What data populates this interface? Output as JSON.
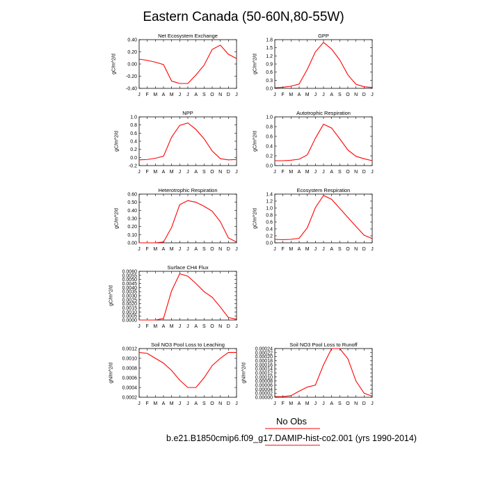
{
  "title": "Eastern Canada (50-60N,80-55W)",
  "footer": {
    "no_obs": "No Obs",
    "case": "b.e21.B1850cmip6.f09_g17.DAMIP-hist-co2.001 (yrs 1990-2014)"
  },
  "colors": {
    "line": "#ff0000",
    "axis": "#000000"
  },
  "chart_data": [
    {
      "type": "line",
      "title": "Net Ecosystem Exchange",
      "ylabel": "gC/m^2/d",
      "categories": [
        "J",
        "F",
        "M",
        "A",
        "M",
        "J",
        "J",
        "A",
        "S",
        "O",
        "N",
        "D",
        "J"
      ],
      "ylim": [
        -0.4,
        0.4
      ],
      "yticks": [
        -0.4,
        -0.2,
        0.0,
        0.2,
        0.4
      ],
      "ytick_labels": [
        "-0.40",
        "-0.20",
        "0.00",
        "0.20",
        "0.40"
      ],
      "values": [
        0.08,
        0.06,
        0.03,
        -0.01,
        -0.28,
        -0.32,
        -0.32,
        -0.18,
        -0.02,
        0.24,
        0.31,
        0.16,
        0.09
      ]
    },
    {
      "type": "line",
      "title": "GPP",
      "ylabel": "gC/m^2/d",
      "categories": [
        "J",
        "F",
        "M",
        "A",
        "M",
        "J",
        "J",
        "A",
        "S",
        "O",
        "N",
        "D",
        "J"
      ],
      "ylim": [
        0,
        1.8
      ],
      "yticks": [
        0,
        0.3,
        0.6,
        0.9,
        1.2,
        1.5,
        1.8
      ],
      "ytick_labels": [
        "0.0",
        "0.3",
        "0.6",
        "0.9",
        "1.2",
        "1.5",
        "1.8"
      ],
      "values": [
        0.02,
        0.04,
        0.08,
        0.16,
        0.7,
        1.35,
        1.7,
        1.45,
        1.05,
        0.5,
        0.15,
        0.06,
        0.03
      ]
    },
    {
      "type": "line",
      "title": "NPP",
      "ylabel": "gC/m^2/d",
      "categories": [
        "J",
        "F",
        "M",
        "A",
        "M",
        "J",
        "J",
        "A",
        "S",
        "O",
        "N",
        "D",
        "J"
      ],
      "ylim": [
        -0.2,
        1.0
      ],
      "yticks": [
        -0.2,
        0.0,
        0.2,
        0.4,
        0.6,
        0.8,
        1.0
      ],
      "ytick_labels": [
        "-0.2",
        "0.0",
        "0.2",
        "0.4",
        "0.6",
        "0.8",
        "1.0"
      ],
      "values": [
        -0.06,
        -0.05,
        -0.02,
        0.03,
        0.5,
        0.79,
        0.85,
        0.69,
        0.46,
        0.16,
        -0.03,
        -0.06,
        -0.05
      ]
    },
    {
      "type": "line",
      "title": "Autotrophic Respiration",
      "ylabel": "gC/m^2/d",
      "categories": [
        "J",
        "F",
        "M",
        "A",
        "M",
        "J",
        "J",
        "A",
        "S",
        "O",
        "N",
        "D",
        "J"
      ],
      "ylim": [
        0,
        1.0
      ],
      "yticks": [
        0,
        0.2,
        0.4,
        0.6,
        0.8,
        1.0
      ],
      "ytick_labels": [
        "0.0",
        "0.2",
        "0.4",
        "0.6",
        "0.8",
        "1.0"
      ],
      "values": [
        0.1,
        0.1,
        0.11,
        0.13,
        0.22,
        0.56,
        0.85,
        0.77,
        0.55,
        0.32,
        0.19,
        0.14,
        0.1
      ]
    },
    {
      "type": "line",
      "title": "Heterotrophic Respiration",
      "ylabel": "gC/m^2/d",
      "categories": [
        "J",
        "F",
        "M",
        "A",
        "M",
        "J",
        "J",
        "A",
        "S",
        "O",
        "N",
        "D",
        "J"
      ],
      "ylim": [
        0,
        0.6
      ],
      "yticks": [
        0,
        0.1,
        0.2,
        0.3,
        0.4,
        0.5,
        0.6
      ],
      "ytick_labels": [
        "0.00",
        "0.10",
        "0.20",
        "0.30",
        "0.40",
        "0.50",
        "0.60"
      ],
      "values": [
        0.0,
        0.0,
        0.0,
        0.01,
        0.19,
        0.47,
        0.52,
        0.5,
        0.45,
        0.39,
        0.26,
        0.06,
        0.01
      ]
    },
    {
      "type": "line",
      "title": "Ecosystem Respiration",
      "ylabel": "gC/m^2/d",
      "categories": [
        "J",
        "F",
        "M",
        "A",
        "M",
        "J",
        "J",
        "A",
        "S",
        "O",
        "N",
        "D",
        "J"
      ],
      "ylim": [
        0,
        1.4
      ],
      "yticks": [
        0,
        0.2,
        0.4,
        0.6,
        0.8,
        1.0,
        1.2,
        1.4
      ],
      "ytick_labels": [
        "0.0",
        "0.2",
        "0.4",
        "0.6",
        "0.8",
        "1.0",
        "1.2",
        "1.4"
      ],
      "values": [
        0.1,
        0.09,
        0.1,
        0.13,
        0.43,
        1.01,
        1.36,
        1.25,
        0.99,
        0.73,
        0.47,
        0.22,
        0.12
      ]
    },
    {
      "type": "line",
      "title": "Surface CH4 Flux",
      "ylabel": "gC/m^2/d",
      "categories": [
        "J",
        "F",
        "M",
        "A",
        "M",
        "J",
        "J",
        "A",
        "S",
        "O",
        "N",
        "D",
        "J"
      ],
      "ylim": [
        0,
        0.006
      ],
      "yticks": [
        0,
        0.0005,
        0.001,
        0.0015,
        0.002,
        0.0025,
        0.003,
        0.0035,
        0.004,
        0.0045,
        0.005,
        0.0055,
        0.006
      ],
      "ytick_labels": [
        "0.0000",
        "0.0005",
        "0.0010",
        "0.0015",
        "0.0020",
        "0.0025",
        "0.0030",
        "0.0035",
        "0.0040",
        "0.0045",
        "0.0050",
        "0.0055",
        "0.0060"
      ],
      "values": [
        0.0,
        0.0,
        0.0,
        0.0002,
        0.0036,
        0.0057,
        0.0054,
        0.0045,
        0.0035,
        0.0028,
        0.0016,
        0.0003,
        0.0001
      ]
    },
    {
      "type": "line",
      "title": "Soil NO3 Pool Loss to Leaching",
      "ylabel": "gN/m^2/d",
      "categories": [
        "J",
        "F",
        "M",
        "A",
        "M",
        "J",
        "J",
        "A",
        "S",
        "O",
        "N",
        "D",
        "J"
      ],
      "ylim": [
        0.0002,
        0.0012
      ],
      "yticks": [
        0.0002,
        0.0004,
        0.0006,
        0.0008,
        0.001,
        0.0012
      ],
      "ytick_labels": [
        "0.0002",
        "0.0004",
        "0.0006",
        "0.0008",
        "0.0010",
        "0.0012"
      ],
      "values": [
        0.00112,
        0.0011,
        0.001,
        0.0009,
        0.00075,
        0.00055,
        0.0004,
        0.0004,
        0.0006,
        0.00085,
        0.001,
        0.00112,
        0.00112
      ]
    },
    {
      "type": "line",
      "title": "Soil NO3 Pool Loss to Runoff",
      "ylabel": "gN/m^2/d",
      "categories": [
        "J",
        "F",
        "M",
        "A",
        "M",
        "J",
        "J",
        "A",
        "S",
        "O",
        "N",
        "D",
        "J"
      ],
      "ylim": [
        0,
        0.00024
      ],
      "yticks": [
        0,
        2e-05,
        4e-05,
        6e-05,
        8e-05,
        0.0001,
        0.00012,
        0.00014,
        0.00016,
        0.00018,
        0.0002,
        0.00022,
        0.00024
      ],
      "ytick_labels": [
        "0.00000",
        "0.00002",
        "0.00004",
        "0.00006",
        "0.00008",
        "0.00010",
        "0.00012",
        "0.00014",
        "0.00016",
        "0.00018",
        "0.00020",
        "0.00022",
        "0.00024"
      ],
      "values": [
        3e-06,
        3e-06,
        8e-06,
        3e-05,
        5e-05,
        6e-05,
        0.00016,
        0.00024,
        0.00024,
        0.00019,
        8e-05,
        2e-05,
        5e-06
      ]
    }
  ]
}
